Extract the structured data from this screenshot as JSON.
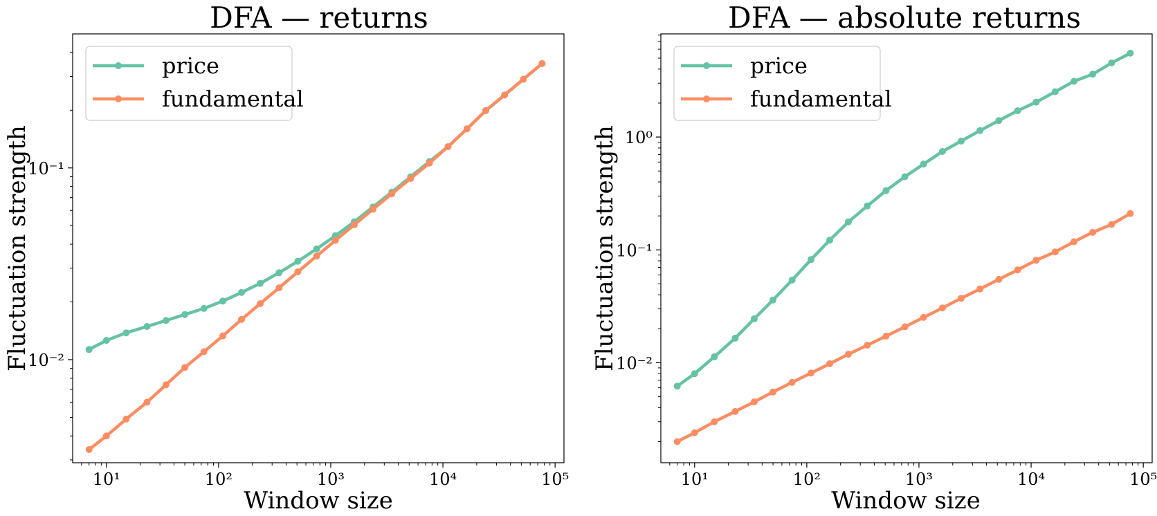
{
  "chart_data": [
    {
      "type": "line",
      "title": "DFA — returns",
      "xlabel": "Window size",
      "ylabel": "Fluctuation strength",
      "xscale": "log",
      "yscale": "log",
      "xlim": [
        5,
        120000
      ],
      "ylim": [
        0.0029,
        0.5
      ],
      "x_ticks": [
        {
          "value": 10,
          "label": "10¹"
        },
        {
          "value": 100,
          "label": "10²"
        },
        {
          "value": 1000,
          "label": "10³"
        },
        {
          "value": 10000,
          "label": "10⁴"
        },
        {
          "value": 100000,
          "label": "10⁵"
        }
      ],
      "y_ticks": [
        {
          "value": 0.01,
          "label": "10⁻²"
        },
        {
          "value": 0.1,
          "label": "10⁻¹"
        }
      ],
      "legend_position": "top-left",
      "x": [
        7,
        10,
        15,
        23,
        34,
        50,
        74,
        109,
        160,
        235,
        346,
        509,
        749,
        1100,
        1620,
        2380,
        3500,
        5150,
        7580,
        11100,
        16400,
        24100,
        35400,
        52100,
        76600
      ],
      "series": [
        {
          "name": "price",
          "color": "#66c2a5",
          "values": [
            0.0113,
            0.0126,
            0.0138,
            0.0149,
            0.016,
            0.0172,
            0.0185,
            0.0202,
            0.0224,
            0.025,
            0.0284,
            0.0326,
            0.0378,
            0.0443,
            0.0524,
            0.0625,
            0.0748,
            0.0899,
            0.108,
            0.129,
            0.16,
            0.199,
            0.24,
            0.29,
            0.35
          ]
        },
        {
          "name": "fundamental",
          "color": "#fc8d62",
          "values": [
            0.0034,
            0.004,
            0.0049,
            0.006,
            0.0074,
            0.0091,
            0.011,
            0.0133,
            0.0162,
            0.0196,
            0.0237,
            0.0287,
            0.0347,
            0.0419,
            0.0505,
            0.0609,
            0.0733,
            0.0881,
            0.106,
            0.129,
            0.16,
            0.199,
            0.24,
            0.29,
            0.35
          ]
        }
      ]
    },
    {
      "type": "line",
      "title": "DFA — absolute returns",
      "xlabel": "Window size",
      "ylabel": "Fluctuation strength",
      "xscale": "log",
      "yscale": "log",
      "xlim": [
        5,
        120000
      ],
      "ylim": [
        0.0013,
        8.2
      ],
      "x_ticks": [
        {
          "value": 10,
          "label": "10¹"
        },
        {
          "value": 100,
          "label": "10²"
        },
        {
          "value": 1000,
          "label": "10³"
        },
        {
          "value": 10000,
          "label": "10⁴"
        },
        {
          "value": 100000,
          "label": "10⁵"
        }
      ],
      "y_ticks": [
        {
          "value": 0.01,
          "label": "10⁻²"
        },
        {
          "value": 0.1,
          "label": "10⁻¹"
        },
        {
          "value": 1,
          "label": "10⁰"
        }
      ],
      "legend_position": "top-left",
      "x": [
        7,
        10,
        15,
        23,
        34,
        50,
        74,
        109,
        160,
        235,
        346,
        509,
        749,
        1100,
        1620,
        2380,
        3500,
        5150,
        7580,
        11100,
        16400,
        24100,
        35400,
        52100,
        76600
      ],
      "series": [
        {
          "name": "price",
          "color": "#66c2a5",
          "values": [
            0.0062,
            0.008,
            0.0113,
            0.0165,
            0.0245,
            0.036,
            0.054,
            0.082,
            0.122,
            0.177,
            0.245,
            0.335,
            0.445,
            0.575,
            0.745,
            0.92,
            1.14,
            1.4,
            1.71,
            2.04,
            2.52,
            3.12,
            3.6,
            4.53,
            5.53
          ]
        },
        {
          "name": "fundamental",
          "color": "#fc8d62",
          "values": [
            0.002,
            0.0024,
            0.003,
            0.0037,
            0.0045,
            0.0055,
            0.0067,
            0.0081,
            0.0098,
            0.0119,
            0.0143,
            0.0172,
            0.0208,
            0.0252,
            0.0306,
            0.0372,
            0.0451,
            0.0548,
            0.0665,
            0.081,
            0.096,
            0.118,
            0.143,
            0.168,
            0.21
          ]
        }
      ]
    }
  ]
}
